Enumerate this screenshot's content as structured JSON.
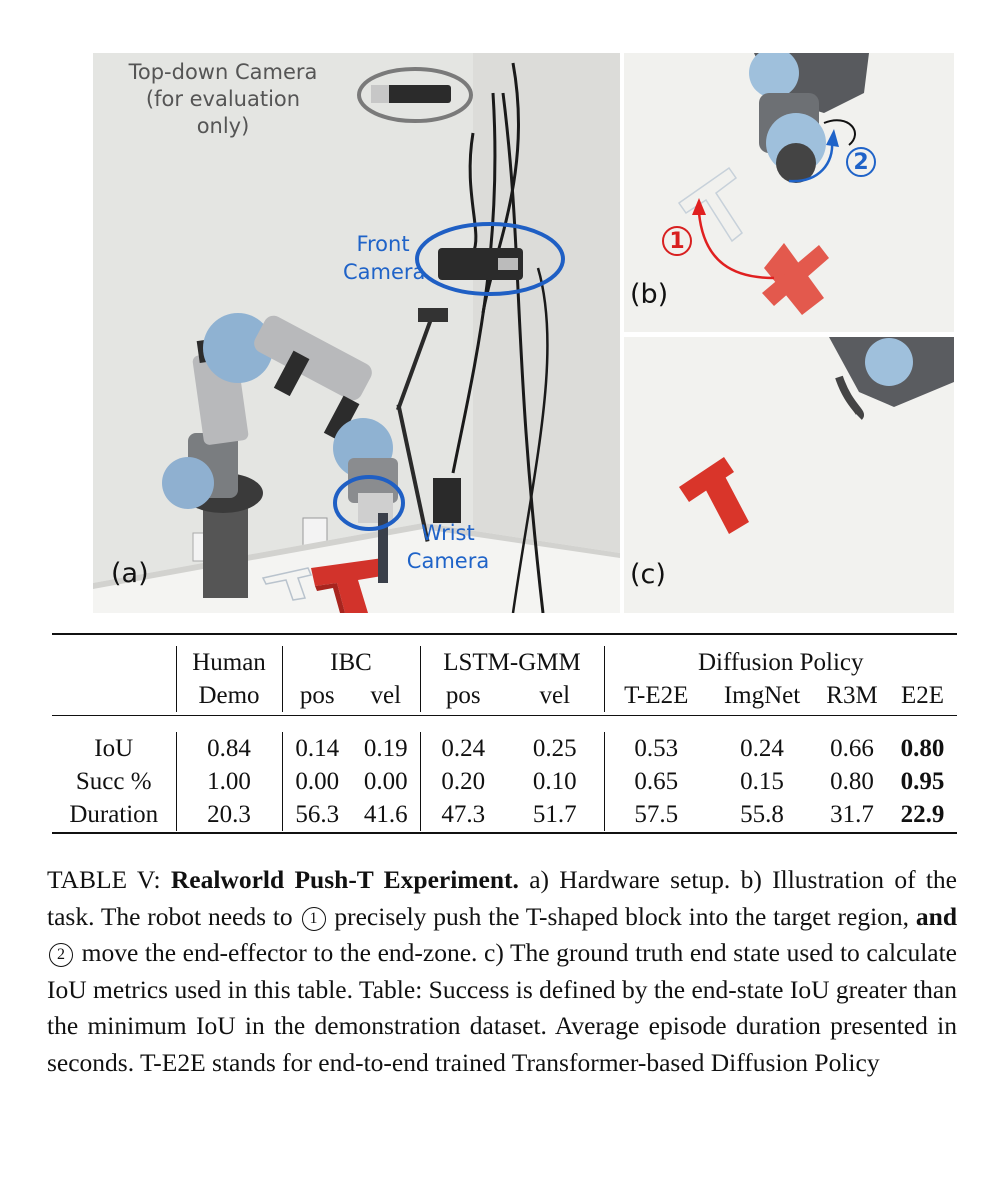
{
  "figure": {
    "panel_a": {
      "label": "(a)",
      "topdown_camera": [
        "Top-down Camera",
        "(for evaluation only)"
      ],
      "front_camera": [
        "Front",
        "Camera"
      ],
      "wrist_camera": [
        "Wrist",
        "Camera"
      ]
    },
    "panel_b": {
      "label": "(b)",
      "step1": "1",
      "step2": "2"
    },
    "panel_c": {
      "label": "(c)"
    }
  },
  "table": {
    "groups": [
      "Human",
      "IBC",
      "LSTM-GMM",
      "Diffusion Policy"
    ],
    "subheaders": [
      "Demo",
      "pos",
      "vel",
      "pos",
      "vel",
      "T-E2E",
      "ImgNet",
      "R3M",
      "E2E"
    ],
    "rows": [
      {
        "label": "IoU",
        "human": "0.84",
        "ibc_pos": "0.14",
        "ibc_vel": "0.19",
        "lstm_pos": "0.24",
        "lstm_vel": "0.25",
        "te2e": "0.53",
        "imgnet": "0.24",
        "r3m": "0.66",
        "e2e": "0.80"
      },
      {
        "label": "Succ %",
        "human": "1.00",
        "ibc_pos": "0.00",
        "ibc_vel": "0.00",
        "lstm_pos": "0.20",
        "lstm_vel": "0.10",
        "te2e": "0.65",
        "imgnet": "0.15",
        "r3m": "0.80",
        "e2e": "0.95"
      },
      {
        "label": "Duration",
        "human": "20.3",
        "ibc_pos": "56.3",
        "ibc_vel": "41.6",
        "lstm_pos": "47.3",
        "lstm_vel": "51.7",
        "te2e": "57.5",
        "imgnet": "55.8",
        "r3m": "31.7",
        "e2e": "22.9"
      }
    ]
  },
  "caption": {
    "prefix": "TABLE V: ",
    "title": "Realworld Push-T Experiment.",
    "part1": " a) Hardware setup. b) Illustration of the task. The robot needs to ",
    "circ1": "1",
    "part2": " precisely push the T-shaped block into the target region, ",
    "and": "and",
    "circ2": "2",
    "part3": " move the end-effector to the end-zone. c) The ground truth end state used to calculate IoU metrics used in this table. Table: Success is defined by the end-state IoU greater than the minimum IoU in the demonstration dataset. Average episode duration presented in seconds. T-E2E stands for end-to-end trained Transformer-based Diffusion Policy"
  }
}
